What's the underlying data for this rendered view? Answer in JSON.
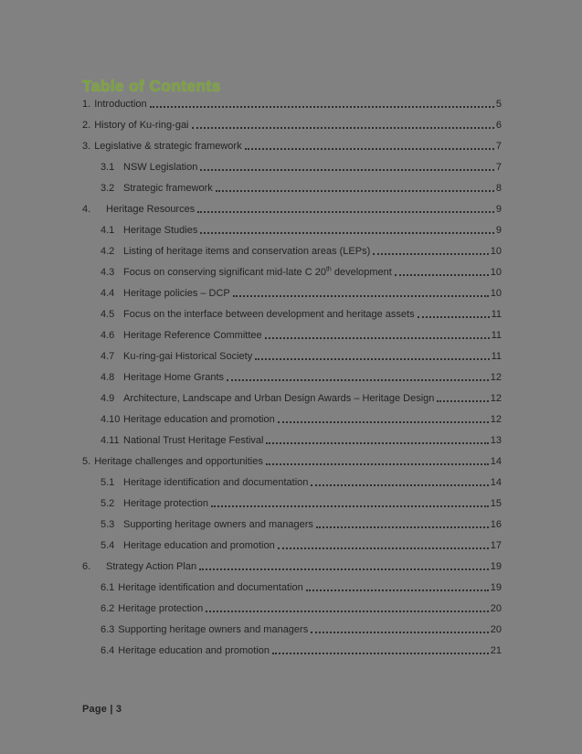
{
  "page": {
    "background_color": "#818181",
    "accent_color": "#7ba23e",
    "text_color": "#222222",
    "footer": "Page | 3"
  },
  "toc": {
    "title": "Table of Contents",
    "entries": [
      {
        "style": "h1",
        "num": "1.",
        "label": "Introduction",
        "page": "5"
      },
      {
        "style": "h1",
        "num": "2.",
        "label": "History of Ku-ring-gai",
        "page": "6"
      },
      {
        "style": "h1",
        "num": "3.",
        "label": "Legislative & strategic framework",
        "page": "7"
      },
      {
        "style": "sub",
        "num": "3.1",
        "label": "NSW Legislation",
        "page": "7"
      },
      {
        "style": "sub",
        "num": "3.2",
        "label": "Strategic framework",
        "page": "8"
      },
      {
        "style": "h1w",
        "num": "4.",
        "label": "Heritage Resources",
        "page": "9"
      },
      {
        "style": "sub",
        "num": "4.1",
        "label": "Heritage Studies",
        "page": "9"
      },
      {
        "style": "sub",
        "num": "4.2",
        "label": "Listing of heritage items and conservation areas (LEPs)",
        "page": "10"
      },
      {
        "style": "sub",
        "num": "4.3",
        "parts": [
          {
            "t": "Focus on conserving significant mid-late C 20"
          },
          {
            "t": "th",
            "sup": true
          },
          {
            "t": " development"
          }
        ],
        "page": "10"
      },
      {
        "style": "sub",
        "num": "4.4",
        "label": "Heritage policies – DCP",
        "page": "10"
      },
      {
        "style": "sub",
        "num": "4.5",
        "label": "Focus on the interface between development and heritage assets",
        "page": "11"
      },
      {
        "style": "sub",
        "num": "4.6",
        "label": "Heritage Reference Committee",
        "page": "11"
      },
      {
        "style": "sub",
        "num": "4.7",
        "label": "Ku-ring-gai Historical Society",
        "page": "11"
      },
      {
        "style": "sub",
        "num": "4.8",
        "label": "Heritage Home Grants",
        "page": "12"
      },
      {
        "style": "sub",
        "num": "4.9",
        "label": "Architecture, Landscape and Urban Design Awards – Heritage Design",
        "page": "12"
      },
      {
        "style": "sub",
        "num": "4.10",
        "label": "Heritage education and promotion",
        "page": "12"
      },
      {
        "style": "sub",
        "num": "4.11",
        "label": "National Trust Heritage Festival",
        "page": "13"
      },
      {
        "style": "h1",
        "num": "5.",
        "label": "Heritage challenges and opportunities",
        "page": "14"
      },
      {
        "style": "sub",
        "num": "5.1",
        "label": "Heritage identification and documentation",
        "page": "14"
      },
      {
        "style": "sub",
        "num": "5.2",
        "label": "Heritage protection",
        "page": "15"
      },
      {
        "style": "sub",
        "num": "5.3",
        "label": "Supporting heritage owners and managers",
        "page": "16"
      },
      {
        "style": "sub",
        "num": "5.4",
        "label": "Heritage education and promotion",
        "page": "17"
      },
      {
        "style": "h1w",
        "num": "6.",
        "label": "Strategy Action Plan",
        "page": "19"
      },
      {
        "style": "sub2",
        "num": "6.1",
        "label": "Heritage identification and documentation",
        "page": "19"
      },
      {
        "style": "sub2",
        "num": "6.2",
        "label": "Heritage protection",
        "page": "20"
      },
      {
        "style": "sub2",
        "num": "6.3",
        "label": "Supporting heritage owners and managers",
        "page": "20"
      },
      {
        "style": "sub2",
        "num": "6.4",
        "label": "Heritage education and promotion",
        "page": "21"
      }
    ]
  }
}
